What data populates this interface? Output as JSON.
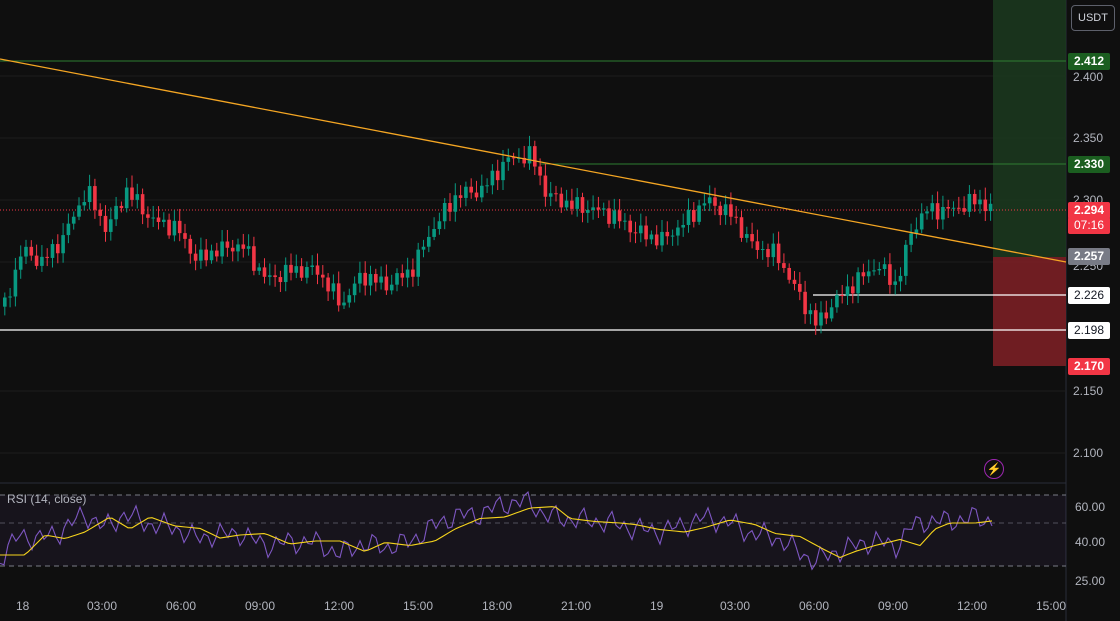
{
  "unit_button": "USDT",
  "price_axis": {
    "ticks": [
      "2.400",
      "2.350",
      "2.300",
      "2.250",
      "2.150",
      "2.100"
    ],
    "badges": [
      {
        "text": "2.412",
        "bg": "#1b5e20",
        "fg": "#ffffff"
      },
      {
        "text": "2.330",
        "bg": "#1b5e20",
        "fg": "#ffffff"
      },
      {
        "text": "2.294",
        "bg": "#f23645",
        "fg": "#ffffff"
      },
      {
        "text": "07:16",
        "bg": "#f23645",
        "fg": "#ffffff"
      },
      {
        "text": "2.257",
        "bg": "#787b86",
        "fg": "#ffffff"
      },
      {
        "text": "2.226",
        "bg": "#ffffff",
        "fg": "#131722"
      },
      {
        "text": "2.198",
        "bg": "#ffffff",
        "fg": "#131722"
      },
      {
        "text": "2.170",
        "bg": "#f23645",
        "fg": "#ffffff"
      }
    ]
  },
  "rsi_panel": {
    "label": "RSI (14, close)",
    "ticks": [
      "60.00",
      "40.00",
      "25.00"
    ]
  },
  "time_axis": [
    "18",
    "03:00",
    "06:00",
    "09:00",
    "12:00",
    "15:00",
    "18:00",
    "21:00",
    "19",
    "03:00",
    "06:00",
    "09:00",
    "12:00",
    "15:00"
  ],
  "colors": {
    "up": "#089981",
    "down": "#f23645",
    "trendline": "#f5a623",
    "rsi": "#7e57c2",
    "rsi_ma": "#f7d51d"
  },
  "icons": {
    "alert": "lightning-icon"
  }
}
